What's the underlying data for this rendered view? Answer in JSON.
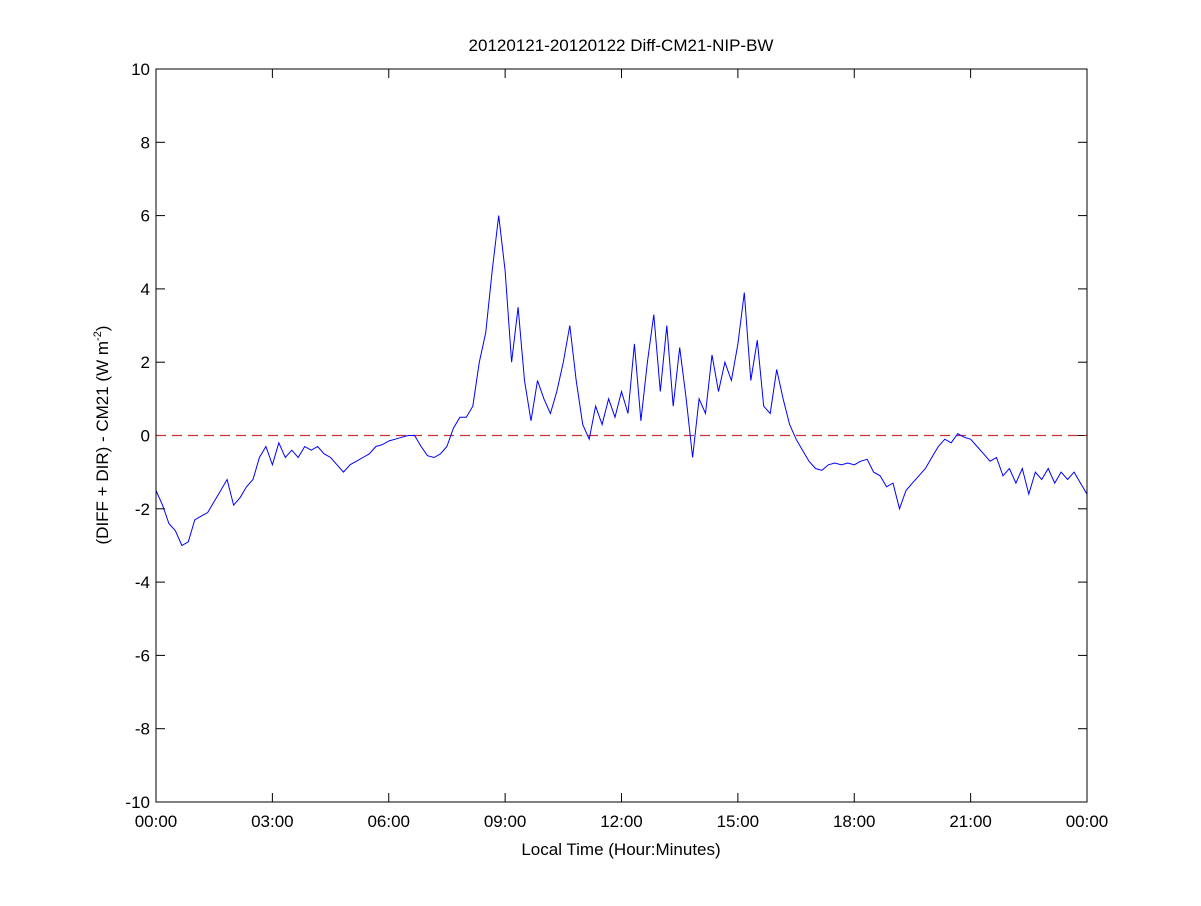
{
  "chart_data": {
    "type": "line",
    "title": "20120121-20120122 Diff-CM21-NIP-BW",
    "xlabel": "Local Time (Hour:Minutes)",
    "ylabel_main": "(DIFF + DIR) - CM21 (W m",
    "ylabel_sup": "-2",
    "ylabel_close": ")",
    "xlim": [
      "00:00",
      "24:00"
    ],
    "ylim": [
      -10,
      10
    ],
    "xticks": [
      {
        "t": "00:00",
        "label": "00:00"
      },
      {
        "t": "03:00",
        "label": "03:00"
      },
      {
        "t": "06:00",
        "label": "06:00"
      },
      {
        "t": "09:00",
        "label": "09:00"
      },
      {
        "t": "12:00",
        "label": "12:00"
      },
      {
        "t": "15:00",
        "label": "15:00"
      },
      {
        "t": "18:00",
        "label": "18:00"
      },
      {
        "t": "21:00",
        "label": "21:00"
      },
      {
        "t": "24:00",
        "label": "00:00"
      }
    ],
    "yticks": [
      -10,
      -8,
      -6,
      -4,
      -2,
      0,
      2,
      4,
      6,
      8,
      10
    ],
    "grid": false,
    "reference_line": {
      "y": 0,
      "style": "dashed",
      "color": "#c83232"
    },
    "series": [
      {
        "color": "#0000ff",
        "points": [
          [
            "00:00",
            -1.5
          ],
          [
            "00:10",
            -1.9
          ],
          [
            "00:20",
            -2.4
          ],
          [
            "00:30",
            -2.6
          ],
          [
            "00:40",
            -3.0
          ],
          [
            "00:50",
            -2.9
          ],
          [
            "01:00",
            -2.3
          ],
          [
            "01:10",
            -2.2
          ],
          [
            "01:20",
            -2.1
          ],
          [
            "01:30",
            -1.8
          ],
          [
            "01:40",
            -1.5
          ],
          [
            "01:50",
            -1.2
          ],
          [
            "02:00",
            -1.9
          ],
          [
            "02:10",
            -1.7
          ],
          [
            "02:20",
            -1.4
          ],
          [
            "02:30",
            -1.2
          ],
          [
            "02:40",
            -0.6
          ],
          [
            "02:50",
            -0.3
          ],
          [
            "03:00",
            -0.8
          ],
          [
            "03:10",
            -0.2
          ],
          [
            "03:20",
            -0.6
          ],
          [
            "03:30",
            -0.4
          ],
          [
            "03:40",
            -0.6
          ],
          [
            "03:50",
            -0.3
          ],
          [
            "04:00",
            -0.4
          ],
          [
            "04:10",
            -0.3
          ],
          [
            "04:20",
            -0.5
          ],
          [
            "04:30",
            -0.6
          ],
          [
            "04:40",
            -0.8
          ],
          [
            "04:50",
            -1.0
          ],
          [
            "05:00",
            -0.8
          ],
          [
            "05:10",
            -0.7
          ],
          [
            "05:20",
            -0.6
          ],
          [
            "05:30",
            -0.5
          ],
          [
            "05:40",
            -0.3
          ],
          [
            "05:50",
            -0.25
          ],
          [
            "06:00",
            -0.15
          ],
          [
            "06:10",
            -0.1
          ],
          [
            "06:20",
            -0.05
          ],
          [
            "06:30",
            0.0
          ],
          [
            "06:40",
            0.0
          ],
          [
            "06:50",
            -0.3
          ],
          [
            "07:00",
            -0.55
          ],
          [
            "07:10",
            -0.6
          ],
          [
            "07:20",
            -0.5
          ],
          [
            "07:30",
            -0.3
          ],
          [
            "07:40",
            0.2
          ],
          [
            "07:50",
            0.5
          ],
          [
            "08:00",
            0.5
          ],
          [
            "08:10",
            0.8
          ],
          [
            "08:20",
            2.0
          ],
          [
            "08:30",
            2.8
          ],
          [
            "08:40",
            4.5
          ],
          [
            "08:50",
            6.0
          ],
          [
            "09:00",
            4.5
          ],
          [
            "09:10",
            2.0
          ],
          [
            "09:20",
            3.5
          ],
          [
            "09:30",
            1.5
          ],
          [
            "09:40",
            0.4
          ],
          [
            "09:50",
            1.5
          ],
          [
            "10:00",
            1.0
          ],
          [
            "10:10",
            0.6
          ],
          [
            "10:20",
            1.2
          ],
          [
            "10:30",
            2.0
          ],
          [
            "10:40",
            3.0
          ],
          [
            "10:50",
            1.5
          ],
          [
            "11:00",
            0.3
          ],
          [
            "11:10",
            -0.1
          ],
          [
            "11:20",
            0.8
          ],
          [
            "11:30",
            0.3
          ],
          [
            "11:40",
            1.0
          ],
          [
            "11:50",
            0.5
          ],
          [
            "12:00",
            1.2
          ],
          [
            "12:10",
            0.6
          ],
          [
            "12:20",
            2.5
          ],
          [
            "12:30",
            0.4
          ],
          [
            "12:40",
            2.0
          ],
          [
            "12:50",
            3.3
          ],
          [
            "13:00",
            1.2
          ],
          [
            "13:10",
            3.0
          ],
          [
            "13:20",
            0.8
          ],
          [
            "13:30",
            2.4
          ],
          [
            "13:40",
            1.0
          ],
          [
            "13:50",
            -0.6
          ],
          [
            "14:00",
            1.0
          ],
          [
            "14:10",
            0.6
          ],
          [
            "14:20",
            2.2
          ],
          [
            "14:30",
            1.2
          ],
          [
            "14:40",
            2.0
          ],
          [
            "14:50",
            1.5
          ],
          [
            "15:00",
            2.5
          ],
          [
            "15:10",
            3.9
          ],
          [
            "15:20",
            1.5
          ],
          [
            "15:30",
            2.6
          ],
          [
            "15:40",
            0.8
          ],
          [
            "15:50",
            0.6
          ],
          [
            "16:00",
            1.8
          ],
          [
            "16:10",
            1.0
          ],
          [
            "16:20",
            0.3
          ],
          [
            "16:30",
            -0.1
          ],
          [
            "16:40",
            -0.4
          ],
          [
            "16:50",
            -0.7
          ],
          [
            "17:00",
            -0.9
          ],
          [
            "17:10",
            -0.95
          ],
          [
            "17:20",
            -0.8
          ],
          [
            "17:30",
            -0.75
          ],
          [
            "17:40",
            -0.8
          ],
          [
            "17:50",
            -0.75
          ],
          [
            "18:00",
            -0.8
          ],
          [
            "18:10",
            -0.7
          ],
          [
            "18:20",
            -0.65
          ],
          [
            "18:30",
            -1.0
          ],
          [
            "18:40",
            -1.1
          ],
          [
            "18:50",
            -1.4
          ],
          [
            "19:00",
            -1.3
          ],
          [
            "19:10",
            -2.0
          ],
          [
            "19:20",
            -1.5
          ],
          [
            "19:30",
            -1.3
          ],
          [
            "19:40",
            -1.1
          ],
          [
            "19:50",
            -0.9
          ],
          [
            "20:00",
            -0.6
          ],
          [
            "20:10",
            -0.3
          ],
          [
            "20:20",
            -0.1
          ],
          [
            "20:30",
            -0.2
          ],
          [
            "20:40",
            0.05
          ],
          [
            "20:50",
            -0.05
          ],
          [
            "21:00",
            -0.1
          ],
          [
            "21:10",
            -0.3
          ],
          [
            "21:20",
            -0.5
          ],
          [
            "21:30",
            -0.7
          ],
          [
            "21:40",
            -0.6
          ],
          [
            "21:50",
            -1.1
          ],
          [
            "22:00",
            -0.9
          ],
          [
            "22:10",
            -1.3
          ],
          [
            "22:20",
            -0.9
          ],
          [
            "22:30",
            -1.6
          ],
          [
            "22:40",
            -1.0
          ],
          [
            "22:50",
            -1.2
          ],
          [
            "23:00",
            -0.9
          ],
          [
            "23:10",
            -1.3
          ],
          [
            "23:20",
            -1.0
          ],
          [
            "23:30",
            -1.2
          ],
          [
            "23:40",
            -1.0
          ],
          [
            "23:50",
            -1.3
          ],
          [
            "24:00",
            -1.6
          ]
        ]
      }
    ]
  }
}
